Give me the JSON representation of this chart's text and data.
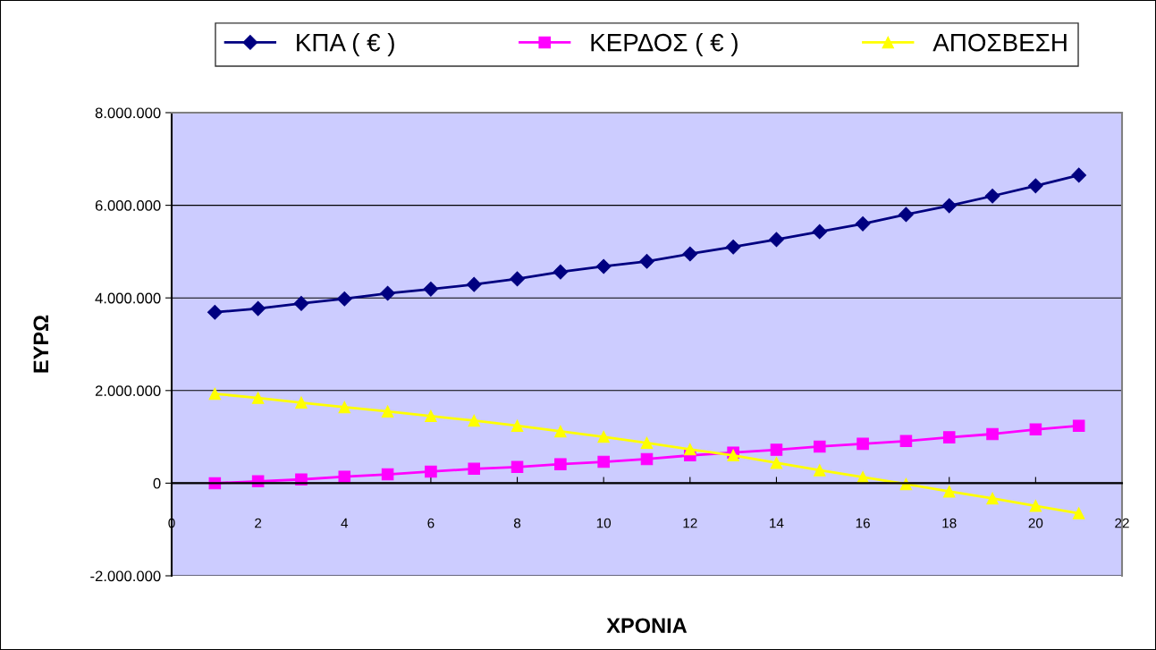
{
  "chart_data": {
    "type": "line",
    "xlabel": "ΧΡΟΝΙΑ",
    "ylabel": "ΕΥΡΩ",
    "x": [
      1,
      2,
      3,
      4,
      5,
      6,
      7,
      8,
      9,
      10,
      11,
      12,
      13,
      14,
      15,
      16,
      17,
      18,
      19,
      20,
      21
    ],
    "series": [
      {
        "name": "ΚΠΑ ( € )",
        "color": "#000080",
        "marker": "diamond",
        "values": [
          3690000,
          3770000,
          3880000,
          3980000,
          4100000,
          4190000,
          4290000,
          4410000,
          4560000,
          4680000,
          4790000,
          4950000,
          5100000,
          5260000,
          5430000,
          5600000,
          5800000,
          5990000,
          6200000,
          6420000,
          6650000
        ]
      },
      {
        "name": "ΚΕΡΔΟΣ ( € )",
        "color": "#ff00ff",
        "marker": "square",
        "values": [
          0,
          40000,
          80000,
          140000,
          190000,
          250000,
          310000,
          350000,
          410000,
          460000,
          520000,
          600000,
          660000,
          720000,
          790000,
          850000,
          910000,
          990000,
          1060000,
          1160000,
          1240000
        ]
      },
      {
        "name": "ΑΠΟΣΒΕΣΗ",
        "color": "#ffff00",
        "marker": "triangle",
        "values": [
          1930000,
          1840000,
          1740000,
          1640000,
          1550000,
          1450000,
          1350000,
          1240000,
          1120000,
          1000000,
          870000,
          730000,
          600000,
          440000,
          280000,
          130000,
          -20000,
          -180000,
          -330000,
          -490000,
          -650000
        ]
      }
    ],
    "xlim": [
      0,
      22
    ],
    "xticks": [
      0,
      2,
      4,
      6,
      8,
      10,
      12,
      14,
      16,
      18,
      20,
      22
    ],
    "ylim": [
      -2000000,
      8000000
    ],
    "yticks": [
      {
        "value": -2000000,
        "label": "-2.000.000"
      },
      {
        "value": 0,
        "label": "0"
      },
      {
        "value": 2000000,
        "label": "2.000.000"
      },
      {
        "value": 4000000,
        "label": "4.000.000"
      },
      {
        "value": 6000000,
        "label": "6.000.000"
      },
      {
        "value": 8000000,
        "label": "8.000.000"
      }
    ],
    "grid": "y",
    "legend": "top",
    "line_style": "solid"
  }
}
